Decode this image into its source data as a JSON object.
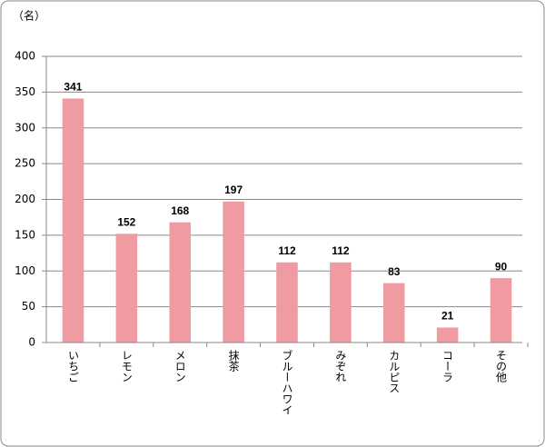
{
  "chart_data": {
    "type": "bar",
    "unit_label": "（名）",
    "categories": [
      "いちご",
      "レモン",
      "メロン",
      "抹茶",
      "ブルーハワイ",
      "みぞれ",
      "カルピス",
      "コーラ",
      "その他"
    ],
    "values": [
      341,
      152,
      168,
      197,
      112,
      112,
      83,
      21,
      90
    ],
    "color": "#f09aa2",
    "ylim": [
      0,
      400
    ],
    "yticks": [
      0,
      50,
      100,
      150,
      200,
      250,
      300,
      350,
      400
    ],
    "grid": true
  }
}
